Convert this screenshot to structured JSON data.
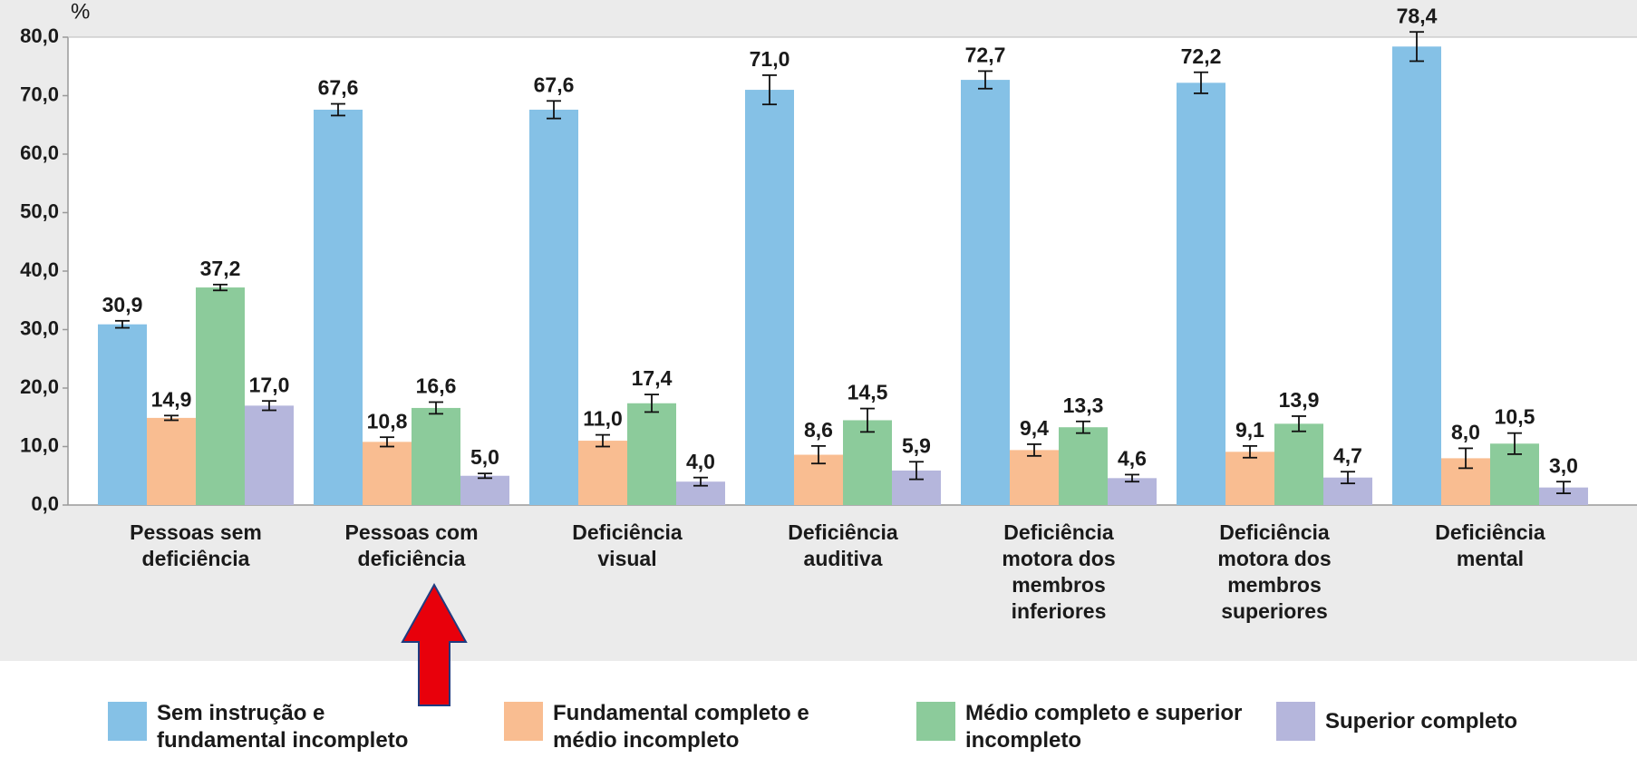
{
  "chart_data": {
    "type": "bar",
    "y_label": "%",
    "categories": [
      "Pessoas sem deficiência",
      "Pessoas com deficiência",
      "Deficiência visual",
      "Deficiência auditiva",
      "Deficiência motora dos membros inferiores",
      "Deficiência motora dos membros superiores",
      "Deficiência mental"
    ],
    "series": [
      {
        "name": "Sem instrução e fundamental incompleto",
        "color": "#85c1e6",
        "values": [
          30.9,
          67.6,
          67.6,
          71.0,
          72.7,
          72.2,
          78.4
        ],
        "value_labels": [
          "30,9",
          "67,6",
          "67,6",
          "71,0",
          "72,7",
          "72,2",
          "78,4"
        ],
        "errors": [
          0.6,
          1.0,
          1.5,
          2.5,
          1.5,
          1.8,
          2.5
        ]
      },
      {
        "name": "Fundamental completo e médio incompleto",
        "color": "#f9bd91",
        "values": [
          14.9,
          10.8,
          11.0,
          8.6,
          9.4,
          9.1,
          8.0
        ],
        "value_labels": [
          "14,9",
          "10,8",
          "11,0",
          "8,6",
          "9,4",
          "9,1",
          "8,0"
        ],
        "errors": [
          0.4,
          0.8,
          1.0,
          1.5,
          1.0,
          1.0,
          1.7
        ]
      },
      {
        "name": "Médio completo e superior incompleto",
        "color": "#8ccb9b",
        "values": [
          37.2,
          16.6,
          17.4,
          14.5,
          13.3,
          13.9,
          10.5
        ],
        "value_labels": [
          "37,2",
          "16,6",
          "17,4",
          "14,5",
          "13,3",
          "13,9",
          "10,5"
        ],
        "errors": [
          0.5,
          1.0,
          1.5,
          2.0,
          1.0,
          1.3,
          1.8
        ]
      },
      {
        "name": "Superior completo",
        "color": "#b5b6dc",
        "values": [
          17.0,
          5.0,
          4.0,
          5.9,
          4.6,
          4.7,
          3.0
        ],
        "value_labels": [
          "17,0",
          "5,0",
          "4,0",
          "5,9",
          "4,6",
          "4,7",
          "3,0"
        ],
        "errors": [
          0.8,
          0.4,
          0.7,
          1.5,
          0.6,
          1.0,
          1.0
        ]
      }
    ],
    "ylim": [
      0,
      80
    ],
    "yticks": [
      {
        "value": 0,
        "label": "0,0"
      },
      {
        "value": 10,
        "label": "10,0"
      },
      {
        "value": 20,
        "label": "20,0"
      },
      {
        "value": 30,
        "label": "30,0"
      },
      {
        "value": 40,
        "label": "40,0"
      },
      {
        "value": 50,
        "label": "50,0"
      },
      {
        "value": 60,
        "label": "60,0"
      },
      {
        "value": 70,
        "label": "70,0"
      },
      {
        "value": 80,
        "label": "80,0"
      }
    ],
    "grid": false,
    "legend": "bottom"
  }
}
